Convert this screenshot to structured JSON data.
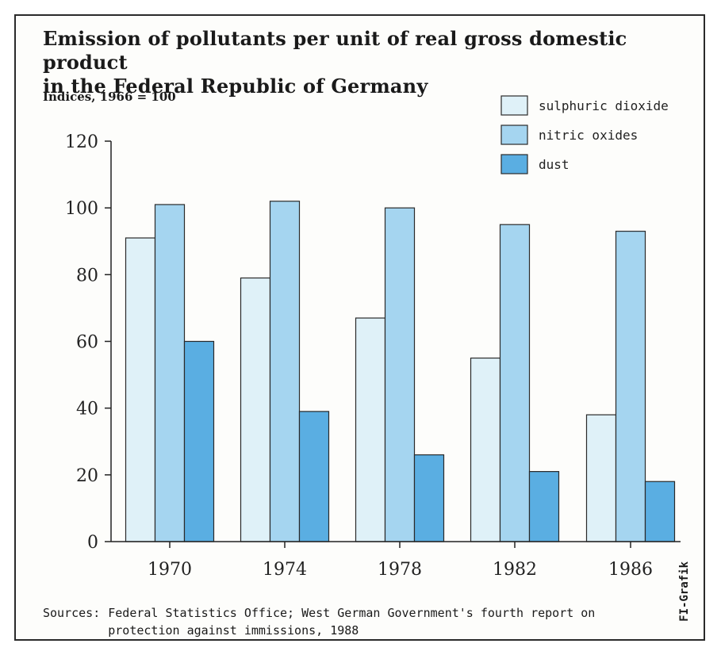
{
  "chart_data": {
    "type": "bar",
    "title": "Emission of pollutants per unit of real gross domestic product in the Federal Republic of Germany",
    "title_lines": [
      "Emission of pollutants per unit of real gross domestic product",
      "in the Federal Republic of Germany"
    ],
    "subtitle": "Indices, 1966 = 100",
    "categories": [
      "1970",
      "1974",
      "1978",
      "1982",
      "1986"
    ],
    "series": [
      {
        "name": "sulphuric dioxide",
        "values": [
          91,
          79,
          67,
          55,
          38
        ],
        "color": "#dff1f8"
      },
      {
        "name": "nitric oxides",
        "values": [
          101,
          102,
          100,
          95,
          93
        ],
        "color": "#a5d5f0"
      },
      {
        "name": "dust",
        "values": [
          60,
          39,
          26,
          21,
          18
        ],
        "color": "#5aaee2"
      }
    ],
    "yticks": [
      "0",
      "20",
      "40",
      "60",
      "80",
      "100",
      "120"
    ],
    "ylim": [
      0,
      120
    ],
    "legend_position": "top-right",
    "grid": false
  },
  "sources_label": "Sources:",
  "sources_text": "Federal Statistics Office; West German Government's fourth report on protection against immissions, 1988",
  "credit": "FI-Grafik"
}
